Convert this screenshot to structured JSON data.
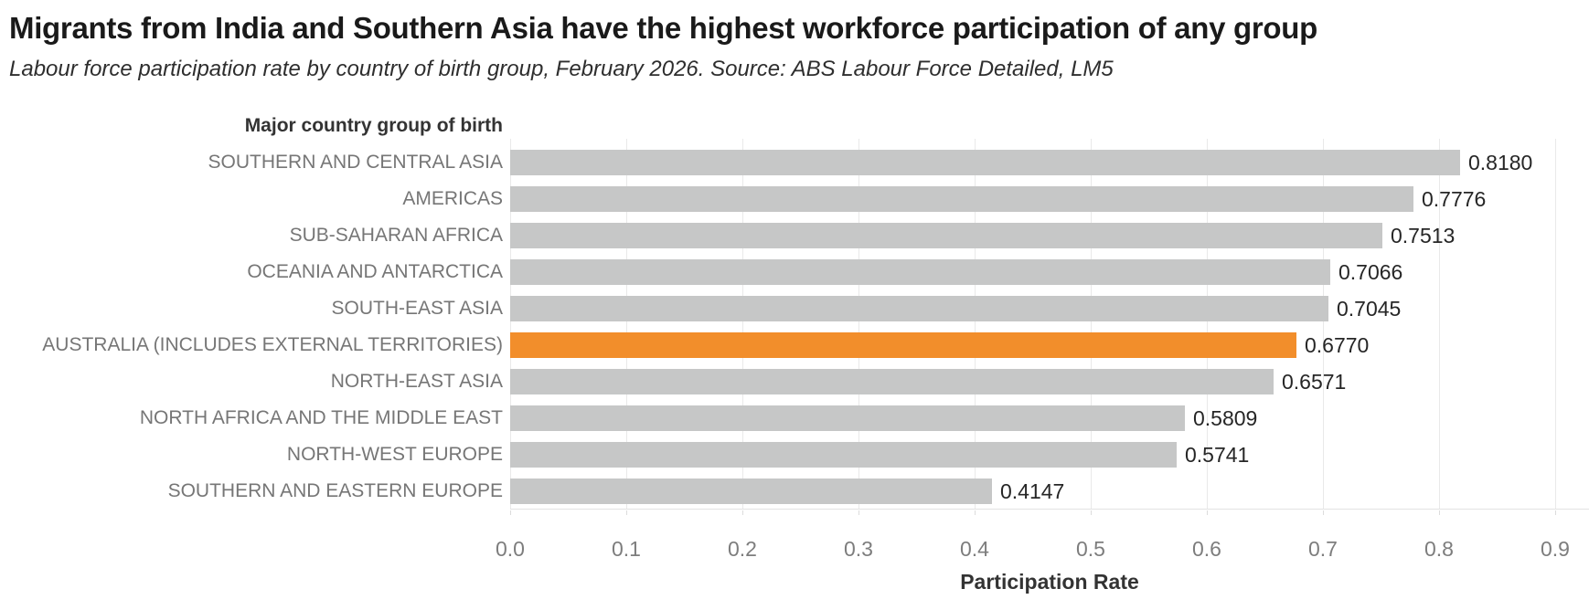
{
  "chart_data": {
    "type": "bar",
    "orientation": "horizontal",
    "title": "Migrants from India and Southern Asia have the highest workforce participation of any group",
    "subtitle": "Labour force participation rate by country of birth group, February 2026. Source: ABS Labour Force Detailed, LM5",
    "row_axis_title": "Major country group of birth",
    "xlabel": "Participation Rate",
    "categories": [
      "SOUTHERN AND CENTRAL ASIA",
      "AMERICAS",
      "SUB-SAHARAN AFRICA",
      "OCEANIA AND ANTARCTICA",
      "SOUTH-EAST ASIA",
      "AUSTRALIA (INCLUDES EXTERNAL TERRITORIES)",
      "NORTH-EAST ASIA",
      "NORTH AFRICA AND THE MIDDLE EAST",
      "NORTH-WEST EUROPE",
      "SOUTHERN AND EASTERN EUROPE"
    ],
    "values": [
      0.818,
      0.7776,
      0.7513,
      0.7066,
      0.7045,
      0.677,
      0.6571,
      0.5809,
      0.5741,
      0.4147
    ],
    "value_labels": [
      "0.8180",
      "0.7776",
      "0.7513",
      "0.7066",
      "0.7045",
      "0.6770",
      "0.6571",
      "0.5809",
      "0.5741",
      "0.4147"
    ],
    "highlight_index": 5,
    "highlight_category": "AUSTRALIA (INCLUDES EXTERNAL TERRITORIES)",
    "x_ticks": [
      "0.0",
      "0.1",
      "0.2",
      "0.3",
      "0.4",
      "0.5",
      "0.6",
      "0.7",
      "0.8",
      "0.9"
    ],
    "xlim": [
      0,
      0.9
    ],
    "grid": "vertical-only",
    "legend": "none",
    "colors": {
      "bar_default": "#c6c7c7",
      "bar_highlight": "#f28e2b",
      "gridline": "#e9e9e9",
      "axis_line": "#e3e3e3",
      "category_label": "#767676",
      "tick_label": "#7d7d7d",
      "value_label": "#262626",
      "title": "#1a1a1a",
      "subtitle": "#2e2e2e",
      "axis_title": "#333333"
    }
  }
}
